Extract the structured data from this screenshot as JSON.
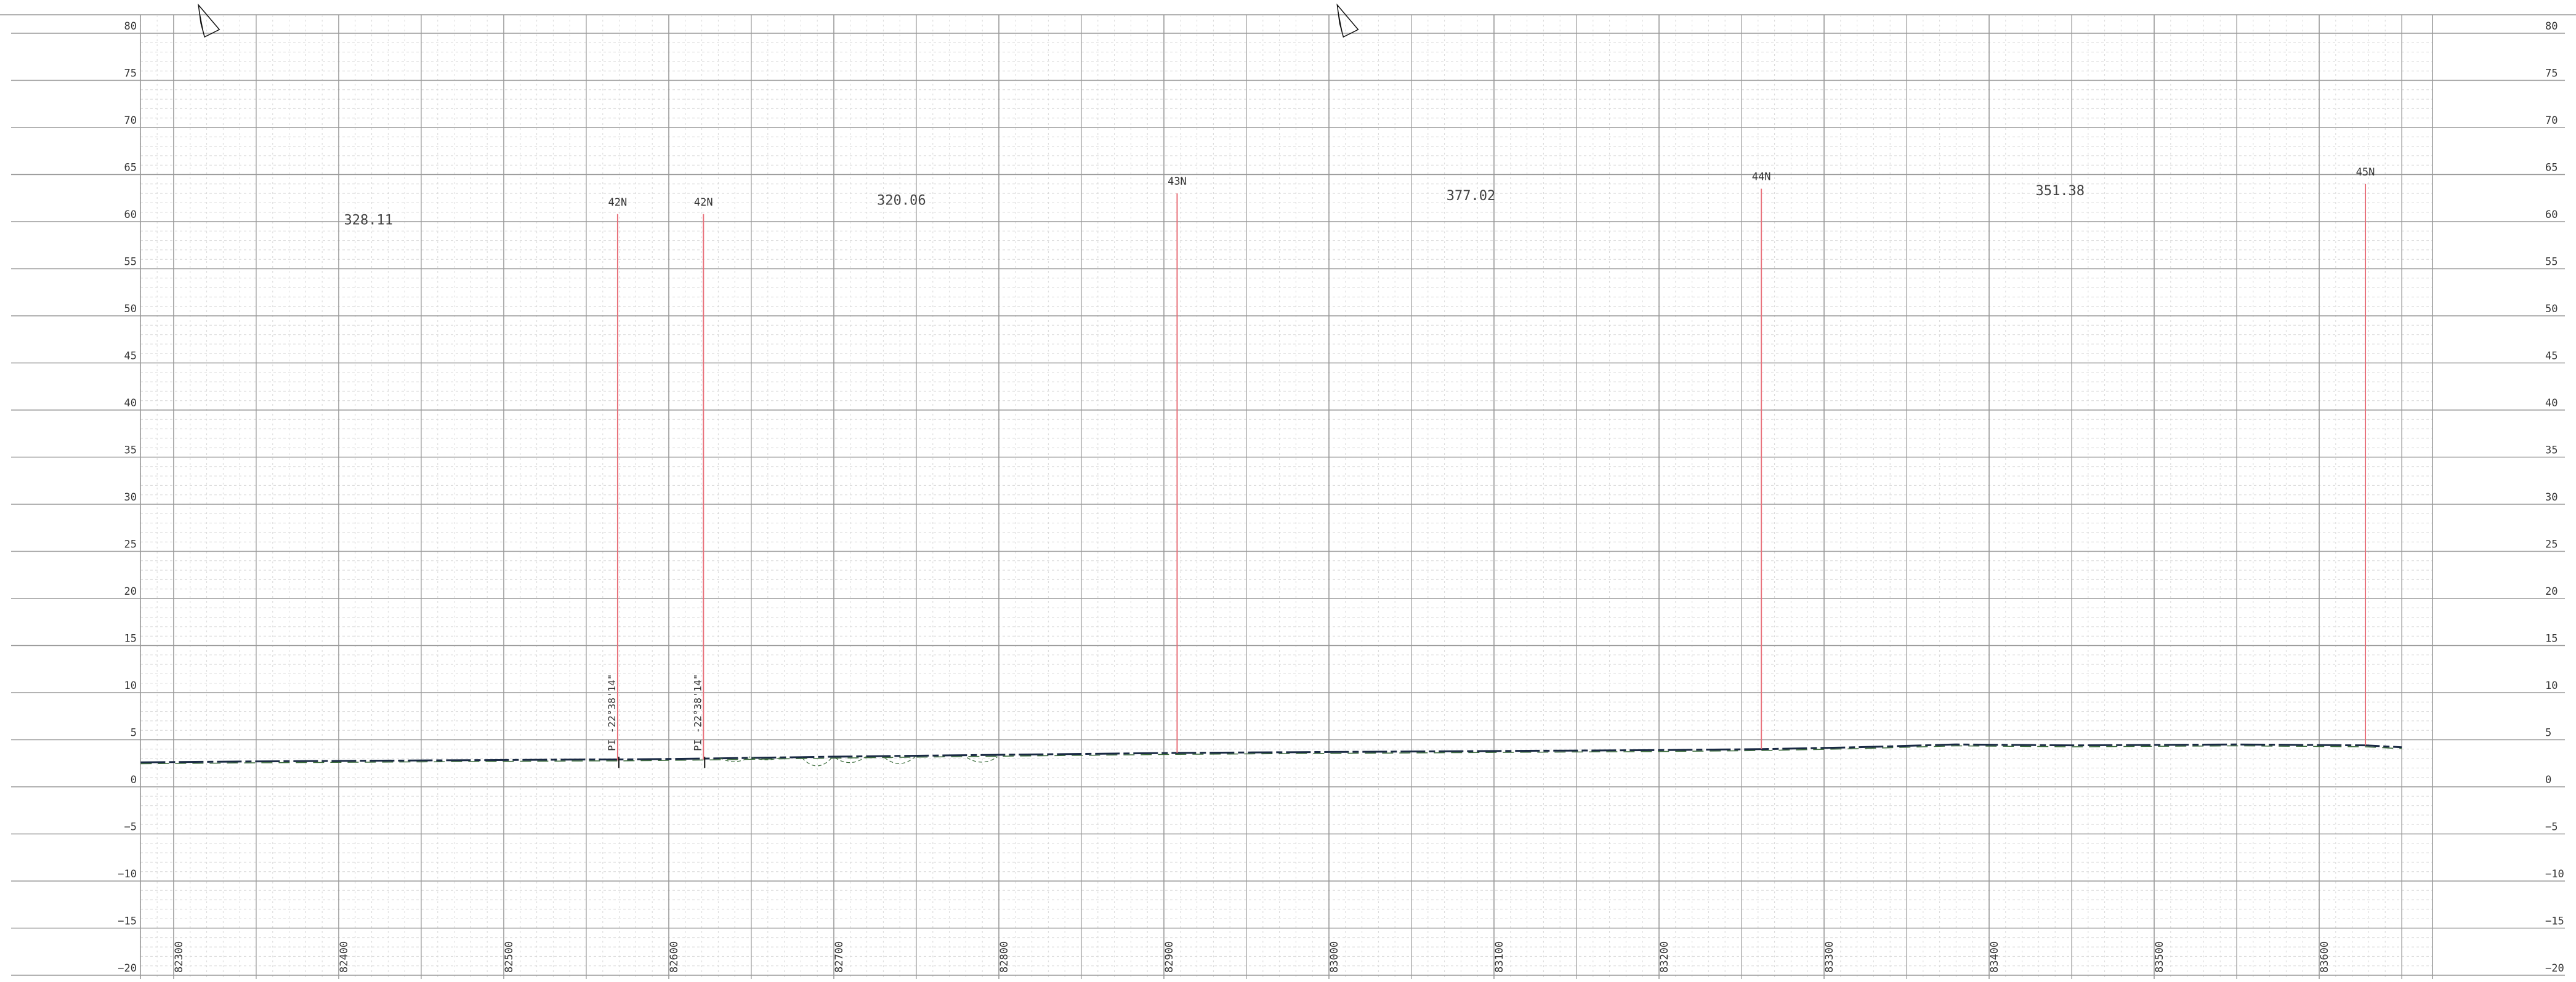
{
  "profile": {
    "elevation_ticks": [
      "80",
      "75",
      "70",
      "65",
      "60",
      "55",
      "50",
      "45",
      "40",
      "35",
      "30",
      "25",
      "20",
      "15",
      "10",
      "5",
      "0",
      "−5",
      "−10",
      "−15",
      "−20"
    ],
    "chainage_ticks": [
      "82300",
      "82400",
      "82500",
      "82600",
      "82700",
      "82800",
      "82900",
      "83000",
      "83100",
      "83200",
      "83300",
      "83400",
      "83500",
      "83600"
    ],
    "poles": [
      {
        "label": "42N",
        "chainage": 82569,
        "top_elev": 60.8,
        "ground_elev": 2.8
      },
      {
        "label": "42N",
        "chainage": 82621,
        "top_elev": 60.8,
        "ground_elev": 2.9
      },
      {
        "label": "43N",
        "chainage": 82908,
        "top_elev": 63.0,
        "ground_elev": 3.6
      },
      {
        "label": "44N",
        "chainage": 83262,
        "top_elev": 63.5,
        "ground_elev": 4.0
      },
      {
        "label": "45N",
        "chainage": 83628,
        "top_elev": 64.0,
        "ground_elev": 4.4
      }
    ],
    "span_labels": [
      {
        "text": "328.11",
        "chainage": 82418,
        "elev": 59.7
      },
      {
        "text": "320.06",
        "chainage": 82741,
        "elev": 61.8
      },
      {
        "text": "377.02",
        "chainage": 83086,
        "elev": 62.3
      },
      {
        "text": "351.38",
        "chainage": 83443,
        "elev": 62.8
      }
    ],
    "pi_labels": [
      {
        "text": "PI -22°38'14\"",
        "chainage": 82569
      },
      {
        "text": "PI -22°38'14\"",
        "chainage": 82621
      }
    ],
    "north_arrows": [
      {
        "chainage": 82315,
        "elev": 81.5
      },
      {
        "chainage": 83005,
        "elev": 81.5
      }
    ],
    "ground_profile": [
      [
        82280,
        2.6
      ],
      [
        82350,
        2.7
      ],
      [
        82450,
        2.8
      ],
      [
        82550,
        2.9
      ],
      [
        82569,
        2.9
      ],
      [
        82621,
        3.0
      ],
      [
        82700,
        3.2
      ],
      [
        82800,
        3.4
      ],
      [
        82908,
        3.6
      ],
      [
        83000,
        3.7
      ],
      [
        83100,
        3.8
      ],
      [
        83200,
        3.9
      ],
      [
        83262,
        4.0
      ],
      [
        83320,
        4.2
      ],
      [
        83380,
        4.5
      ],
      [
        83450,
        4.4
      ],
      [
        83550,
        4.5
      ],
      [
        83628,
        4.4
      ],
      [
        83650,
        4.2
      ]
    ],
    "colors": {
      "grid_major": "#9a9a9a",
      "grid_minor": "#d8d8d8",
      "pole": "#e8707a",
      "ground": "#1a2a44",
      "ground_alt": "#3b6b3b"
    }
  }
}
